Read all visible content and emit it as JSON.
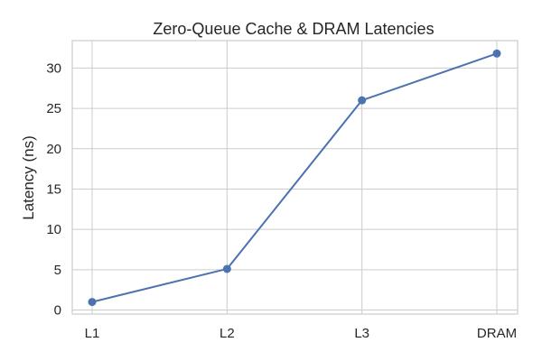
{
  "chart_data": {
    "type": "line",
    "title": "Zero-Queue Cache & DRAM Latencies",
    "xlabel": "",
    "ylabel": "Latency (ns)",
    "categories": [
      "L1",
      "L2",
      "L3",
      "DRAM"
    ],
    "values": [
      1.0,
      5.1,
      26.0,
      31.8
    ],
    "ylim": [
      -0.5,
      33.4
    ],
    "yticks": [
      0,
      5,
      10,
      15,
      20,
      25,
      30
    ],
    "grid": true,
    "legend": "none",
    "line_color": "#4c72b0"
  }
}
